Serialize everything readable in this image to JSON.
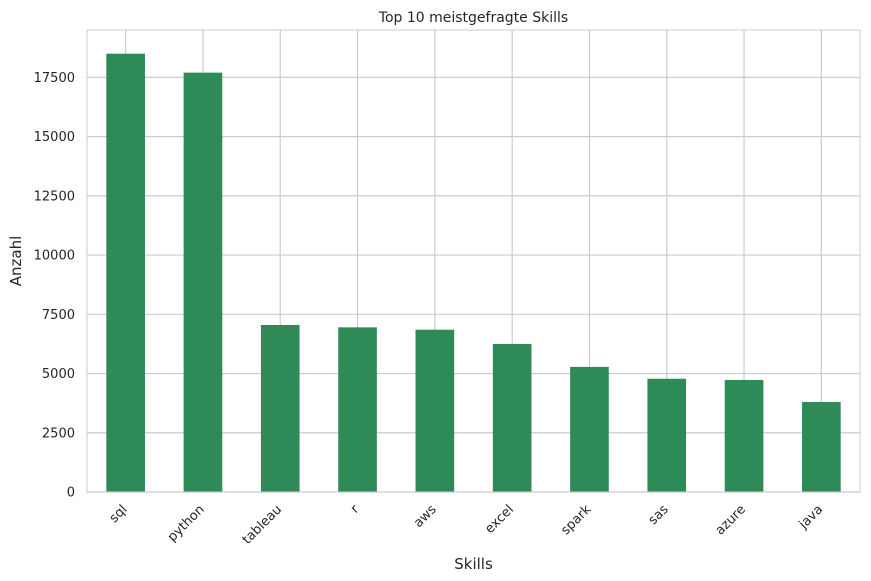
{
  "chart_data": {
    "type": "bar",
    "title": "Top 10 meistgefragte Skills",
    "xlabel": "Skills",
    "ylabel": "Anzahl",
    "categories": [
      "sql",
      "python",
      "tableau",
      "r",
      "aws",
      "excel",
      "spark",
      "sas",
      "azure",
      "java"
    ],
    "values": [
      18500,
      17700,
      7050,
      6950,
      6850,
      6250,
      5280,
      4780,
      4730,
      3800
    ],
    "ylim": [
      0,
      19500
    ],
    "yticks": [
      0,
      2500,
      5000,
      7500,
      10000,
      12500,
      15000,
      17500
    ],
    "ytick_labels": [
      "0",
      "2500",
      "5000",
      "7500",
      "10000",
      "12500",
      "15000",
      "17500"
    ],
    "grid": true,
    "bar_color": "#2e8b57",
    "grid_color": "#cccccc",
    "axes_edge_color": "#cccccc"
  }
}
